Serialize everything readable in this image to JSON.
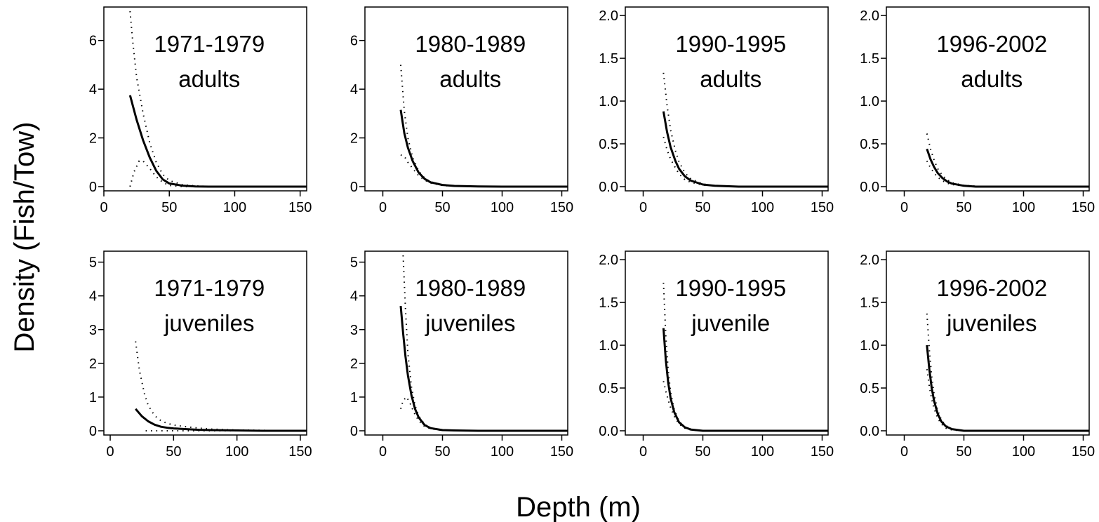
{
  "figure": {
    "ylabel": "Density (Fish/Tow)",
    "xlabel": "Depth (m)"
  },
  "chart_data": [
    {
      "type": "line",
      "title": "1971-1979",
      "subtitle": "adults",
      "xlim": [
        0,
        155
      ],
      "ylim": [
        0,
        7.2
      ],
      "xticks": [
        0,
        50,
        100,
        150
      ],
      "yticks": [
        0,
        2,
        4,
        6
      ],
      "series": [
        {
          "style": "solid",
          "x": [
            20,
            25,
            30,
            35,
            40,
            45,
            50,
            60,
            70,
            80,
            100,
            120,
            155
          ],
          "y": [
            3.75,
            2.75,
            1.9,
            1.2,
            0.65,
            0.3,
            0.13,
            0.04,
            0.01,
            0,
            0,
            0,
            0
          ]
        },
        {
          "style": "dotted",
          "x": [
            20,
            22,
            25,
            30,
            35,
            40,
            45,
            50,
            60,
            70,
            80,
            100,
            155
          ],
          "y": [
            7.2,
            6.0,
            4.5,
            3.0,
            1.8,
            1.0,
            0.5,
            0.25,
            0.08,
            0.03,
            0.01,
            0,
            0
          ]
        },
        {
          "style": "dotted",
          "x": [
            20,
            23,
            27,
            30,
            35,
            40,
            45,
            50,
            60,
            80,
            155
          ],
          "y": [
            0,
            0.6,
            1.05,
            1.05,
            0.75,
            0.4,
            0.18,
            0.05,
            0,
            0,
            0
          ]
        }
      ]
    },
    {
      "type": "line",
      "title": "1980-1989",
      "subtitle": "adults",
      "xlim": [
        -15,
        155
      ],
      "ylim": [
        0,
        7.2
      ],
      "xticks": [
        0,
        50,
        100,
        150
      ],
      "yticks": [
        0,
        2,
        4,
        6
      ],
      "series": [
        {
          "style": "solid",
          "x": [
            15,
            18,
            21,
            25,
            30,
            35,
            40,
            50,
            60,
            80,
            100,
            155
          ],
          "y": [
            3.15,
            2.2,
            1.6,
            1.05,
            0.58,
            0.32,
            0.18,
            0.07,
            0.03,
            0.01,
            0,
            0
          ]
        },
        {
          "style": "dotted",
          "x": [
            15,
            18,
            21,
            25,
            30,
            35,
            40,
            50,
            60,
            80,
            155
          ],
          "y": [
            5.0,
            3.1,
            2.0,
            1.2,
            0.65,
            0.35,
            0.2,
            0.08,
            0.03,
            0.01,
            0
          ]
        },
        {
          "style": "dotted",
          "x": [
            15,
            18,
            21,
            25,
            30,
            35,
            40,
            50,
            60,
            80,
            155
          ],
          "y": [
            1.3,
            1.25,
            1.0,
            0.75,
            0.45,
            0.27,
            0.15,
            0.05,
            0.02,
            0,
            0
          ]
        }
      ]
    },
    {
      "type": "line",
      "title": "1990-1995",
      "subtitle": "adults",
      "xlim": [
        -15,
        155
      ],
      "ylim": [
        0,
        2.05
      ],
      "xticks": [
        0,
        50,
        100,
        150
      ],
      "yticks": [
        0.0,
        0.5,
        1.0,
        1.5,
        2.0
      ],
      "series": [
        {
          "style": "solid",
          "x": [
            17,
            20,
            23,
            27,
            30,
            35,
            40,
            50,
            60,
            80,
            100,
            155
          ],
          "y": [
            0.88,
            0.64,
            0.46,
            0.3,
            0.21,
            0.12,
            0.07,
            0.025,
            0.01,
            0,
            0,
            0
          ]
        },
        {
          "style": "dotted",
          "x": [
            17,
            20,
            23,
            27,
            30,
            35,
            40,
            50,
            60,
            80,
            155
          ],
          "y": [
            1.33,
            0.95,
            0.66,
            0.42,
            0.29,
            0.16,
            0.09,
            0.03,
            0.01,
            0,
            0
          ]
        },
        {
          "style": "dotted",
          "x": [
            17,
            20,
            23,
            27,
            30,
            35,
            40,
            50,
            60,
            80,
            155
          ],
          "y": [
            0.58,
            0.43,
            0.32,
            0.22,
            0.15,
            0.08,
            0.05,
            0.02,
            0.01,
            0,
            0
          ]
        }
      ]
    },
    {
      "type": "line",
      "title": "1996-2002",
      "subtitle": "adults",
      "xlim": [
        -15,
        155
      ],
      "ylim": [
        0,
        2.05
      ],
      "xticks": [
        0,
        50,
        100,
        150
      ],
      "yticks": [
        0.0,
        0.5,
        1.0,
        1.5,
        2.0
      ],
      "series": [
        {
          "style": "solid",
          "x": [
            19,
            22,
            25,
            28,
            32,
            36,
            40,
            50,
            60,
            80,
            100,
            155
          ],
          "y": [
            0.44,
            0.32,
            0.23,
            0.16,
            0.1,
            0.06,
            0.035,
            0.01,
            0,
            0,
            0,
            0
          ]
        },
        {
          "style": "dotted",
          "x": [
            19,
            22,
            25,
            28,
            32,
            36,
            40,
            50,
            60,
            80,
            155
          ],
          "y": [
            0.62,
            0.44,
            0.31,
            0.21,
            0.13,
            0.08,
            0.045,
            0.015,
            0.005,
            0,
            0
          ]
        },
        {
          "style": "dotted",
          "x": [
            19,
            22,
            25,
            28,
            32,
            36,
            40,
            50,
            60,
            80,
            155
          ],
          "y": [
            0.3,
            0.22,
            0.16,
            0.11,
            0.07,
            0.04,
            0.025,
            0.008,
            0,
            0,
            0
          ]
        }
      ]
    },
    {
      "type": "line",
      "title": "1971-1979",
      "subtitle": "juveniles",
      "xlim": [
        -5,
        155
      ],
      "ylim": [
        0,
        5.2
      ],
      "xticks": [
        0,
        50,
        100,
        150
      ],
      "yticks": [
        0,
        1,
        2,
        3,
        4,
        5
      ],
      "series": [
        {
          "style": "solid",
          "x": [
            20,
            25,
            30,
            35,
            40,
            45,
            50,
            60,
            70,
            80,
            100,
            120,
            155
          ],
          "y": [
            0.65,
            0.43,
            0.28,
            0.18,
            0.12,
            0.09,
            0.07,
            0.05,
            0.03,
            0.02,
            0.01,
            0,
            0
          ]
        },
        {
          "style": "dotted",
          "x": [
            20,
            23,
            27,
            30,
            35,
            40,
            45,
            50,
            60,
            70,
            80,
            100,
            155
          ],
          "y": [
            2.65,
            1.8,
            1.1,
            0.75,
            0.45,
            0.3,
            0.22,
            0.17,
            0.12,
            0.08,
            0.05,
            0.02,
            0
          ]
        },
        {
          "style": "dotted",
          "x": [
            28,
            35,
            45,
            55,
            65,
            80,
            100,
            155
          ],
          "y": [
            0,
            0,
            0,
            0,
            0,
            0,
            0,
            0
          ]
        }
      ]
    },
    {
      "type": "line",
      "title": "1980-1989",
      "subtitle": "juveniles",
      "xlim": [
        -15,
        155
      ],
      "ylim": [
        0,
        5.2
      ],
      "xticks": [
        0,
        50,
        100,
        150
      ],
      "yticks": [
        0,
        1,
        2,
        3,
        4,
        5
      ],
      "series": [
        {
          "style": "solid",
          "x": [
            15,
            17,
            19,
            21,
            24,
            27,
            30,
            35,
            40,
            50,
            60,
            80,
            155
          ],
          "y": [
            3.7,
            2.9,
            2.2,
            1.65,
            1.05,
            0.65,
            0.4,
            0.17,
            0.08,
            0.02,
            0.01,
            0,
            0
          ]
        },
        {
          "style": "dotted",
          "x": [
            17,
            19,
            21,
            24,
            27,
            30,
            35,
            40,
            50,
            60,
            155
          ],
          "y": [
            5.2,
            3.6,
            2.3,
            1.3,
            0.75,
            0.45,
            0.19,
            0.09,
            0.02,
            0.01,
            0
          ]
        },
        {
          "style": "dotted",
          "x": [
            15,
            17,
            20,
            23,
            26,
            30,
            35,
            40,
            50,
            155
          ],
          "y": [
            0.65,
            0.9,
            1.0,
            0.8,
            0.55,
            0.3,
            0.13,
            0.06,
            0.01,
            0
          ]
        }
      ]
    },
    {
      "type": "line",
      "title": "1990-1995",
      "subtitle": "juvenile",
      "xlim": [
        -15,
        155
      ],
      "ylim": [
        0,
        2.05
      ],
      "xticks": [
        0,
        50,
        100,
        150
      ],
      "yticks": [
        0.0,
        0.5,
        1.0,
        1.5,
        2.0
      ],
      "series": [
        {
          "style": "solid",
          "x": [
            17,
            19,
            21,
            23,
            26,
            30,
            35,
            40,
            50,
            60,
            155
          ],
          "y": [
            1.2,
            0.82,
            0.56,
            0.38,
            0.22,
            0.1,
            0.04,
            0.015,
            0,
            0,
            0
          ]
        },
        {
          "style": "dotted",
          "x": [
            17,
            19,
            21,
            23,
            26,
            30,
            35,
            40,
            50,
            155
          ],
          "y": [
            1.73,
            1.1,
            0.7,
            0.45,
            0.25,
            0.11,
            0.04,
            0.015,
            0,
            0
          ]
        },
        {
          "style": "dotted",
          "x": [
            17,
            19,
            21,
            23,
            26,
            30,
            35,
            40,
            50,
            155
          ],
          "y": [
            0.58,
            0.46,
            0.36,
            0.27,
            0.17,
            0.08,
            0.03,
            0.01,
            0,
            0
          ]
        }
      ]
    },
    {
      "type": "line",
      "title": "1996-2002",
      "subtitle": "juveniles",
      "xlim": [
        -15,
        155
      ],
      "ylim": [
        0,
        2.05
      ],
      "xticks": [
        0,
        50,
        100,
        150
      ],
      "yticks": [
        0.0,
        0.5,
        1.0,
        1.5,
        2.0
      ],
      "series": [
        {
          "style": "solid",
          "x": [
            19,
            21,
            23,
            25,
            28,
            31,
            35,
            40,
            50,
            60,
            155
          ],
          "y": [
            1.0,
            0.72,
            0.5,
            0.35,
            0.2,
            0.11,
            0.05,
            0.02,
            0,
            0,
            0
          ]
        },
        {
          "style": "dotted",
          "x": [
            19,
            21,
            23,
            25,
            28,
            31,
            35,
            40,
            50,
            155
          ],
          "y": [
            1.37,
            0.95,
            0.64,
            0.43,
            0.24,
            0.13,
            0.06,
            0.02,
            0,
            0
          ]
        },
        {
          "style": "dotted",
          "x": [
            19,
            21,
            23,
            25,
            28,
            31,
            35,
            40,
            50,
            155
          ],
          "y": [
            0.72,
            0.52,
            0.37,
            0.26,
            0.15,
            0.08,
            0.03,
            0.01,
            0,
            0
          ]
        }
      ]
    }
  ]
}
